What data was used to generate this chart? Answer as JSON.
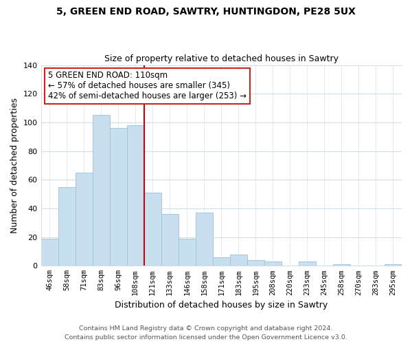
{
  "title": "5, GREEN END ROAD, SAWTRY, HUNTINGDON, PE28 5UX",
  "subtitle": "Size of property relative to detached houses in Sawtry",
  "xlabel": "Distribution of detached houses by size in Sawtry",
  "ylabel": "Number of detached properties",
  "categories": [
    "46sqm",
    "58sqm",
    "71sqm",
    "83sqm",
    "96sqm",
    "108sqm",
    "121sqm",
    "133sqm",
    "146sqm",
    "158sqm",
    "171sqm",
    "183sqm",
    "195sqm",
    "208sqm",
    "220sqm",
    "233sqm",
    "245sqm",
    "258sqm",
    "270sqm",
    "283sqm",
    "295sqm"
  ],
  "values": [
    19,
    55,
    65,
    105,
    96,
    98,
    51,
    36,
    19,
    37,
    6,
    8,
    4,
    3,
    0,
    3,
    0,
    1,
    0,
    0,
    1
  ],
  "bar_color": "#c8dff0",
  "bar_edge_color": "#9dbfda",
  "vline_x": 5.5,
  "vline_color": "#cc0000",
  "annotation_title": "5 GREEN END ROAD: 110sqm",
  "annotation_line1": "← 57% of detached houses are smaller (345)",
  "annotation_line2": "42% of semi-detached houses are larger (253) →",
  "annotation_box_facecolor": "white",
  "annotation_box_edgecolor": "#cc2222",
  "ylim": [
    0,
    140
  ],
  "xlim_left": -0.5,
  "footnote1": "Contains HM Land Registry data © Crown copyright and database right 2024.",
  "footnote2": "Contains public sector information licensed under the Open Government Licence v3.0.",
  "background_color": "#ffffff",
  "grid_color": "#d0dce8",
  "title_fontsize": 10,
  "subtitle_fontsize": 9,
  "ylabel_fontsize": 9,
  "xlabel_fontsize": 9,
  "tick_fontsize": 7.5,
  "ann_fontsize": 8.5,
  "footnote_fontsize": 6.8
}
